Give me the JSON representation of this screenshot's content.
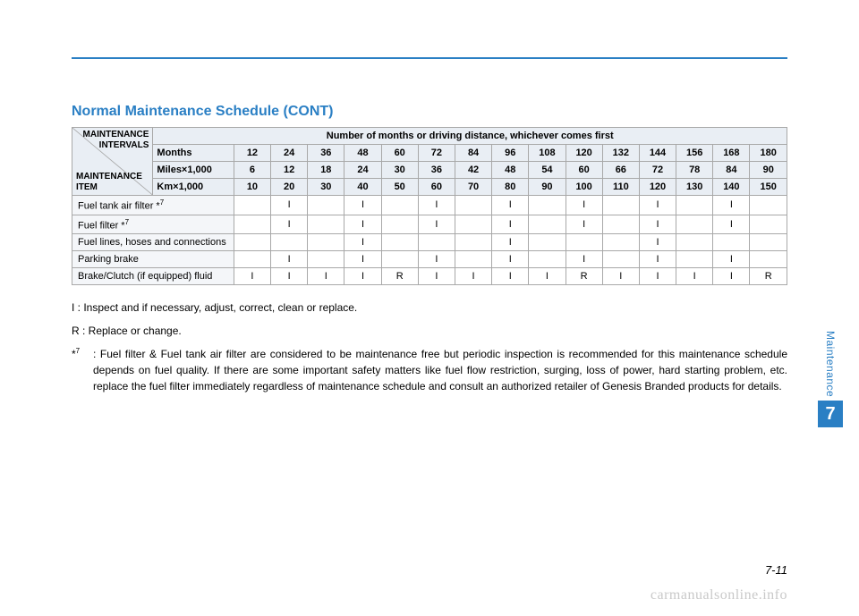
{
  "title": "Normal Maintenance Schedule (CONT)",
  "header": {
    "intervals_label_1": "MAINTENANCE",
    "intervals_label_2": "INTERVALS",
    "item_label_1": "MAINTENANCE",
    "item_label_2": "ITEM",
    "span_title": "Number of months or driving distance, whichever comes first",
    "rows": [
      {
        "label": "Months",
        "vals": [
          "12",
          "24",
          "36",
          "48",
          "60",
          "72",
          "84",
          "96",
          "108",
          "120",
          "132",
          "144",
          "156",
          "168",
          "180"
        ]
      },
      {
        "label": "Miles×1,000",
        "vals": [
          "6",
          "12",
          "18",
          "24",
          "30",
          "36",
          "42",
          "48",
          "54",
          "60",
          "66",
          "72",
          "78",
          "84",
          "90"
        ]
      },
      {
        "label": "Km×1,000",
        "vals": [
          "10",
          "20",
          "30",
          "40",
          "50",
          "60",
          "70",
          "80",
          "90",
          "100",
          "110",
          "120",
          "130",
          "140",
          "150"
        ]
      }
    ]
  },
  "items": [
    {
      "label": "Fuel tank air filter *",
      "sup": "7",
      "cells": [
        "",
        "I",
        "",
        "I",
        "",
        "I",
        "",
        "I",
        "",
        "I",
        "",
        "I",
        "",
        "I",
        ""
      ]
    },
    {
      "label": "Fuel filter *",
      "sup": "7",
      "cells": [
        "",
        "I",
        "",
        "I",
        "",
        "I",
        "",
        "I",
        "",
        "I",
        "",
        "I",
        "",
        "I",
        ""
      ]
    },
    {
      "label": "Fuel lines, hoses and connections",
      "sup": "",
      "cells": [
        "",
        "",
        "",
        "I",
        "",
        "",
        "",
        "I",
        "",
        "",
        "",
        "I",
        "",
        "",
        ""
      ]
    },
    {
      "label": "Parking brake",
      "sup": "",
      "cells": [
        "",
        "I",
        "",
        "I",
        "",
        "I",
        "",
        "I",
        "",
        "I",
        "",
        "I",
        "",
        "I",
        ""
      ]
    },
    {
      "label": "Brake/Clutch (if equipped) fluid",
      "sup": "",
      "cells": [
        "I",
        "I",
        "I",
        "I",
        "R",
        "I",
        "I",
        "I",
        "I",
        "R",
        "I",
        "I",
        "I",
        "I",
        "R"
      ]
    }
  ],
  "legend": {
    "i": "I  : Inspect and if necessary, adjust, correct, clean or replace.",
    "r": "R : Replace or change.",
    "footnote_label": "*",
    "footnote_sup": "7",
    "footnote_sep": " : ",
    "footnote_text": "Fuel filter & Fuel tank air filter are considered to be maintenance free but periodic inspection is recommended for this maintenance schedule depends on fuel quality. If there are some important safety matters like fuel flow restriction, surging, loss of power, hard starting problem, etc. replace the fuel filter immediately regardless of maintenance schedule and consult an authorized retailer of Genesis Branded products for details."
  },
  "side": {
    "label": "Maintenance",
    "num": "7"
  },
  "page_num": "7-11",
  "watermark": "carmanualsonline.info",
  "colors": {
    "accent": "#2a7fc4",
    "header_bg": "#e9eef4",
    "item_bg": "#f4f6f9",
    "border": "#a8a8a8",
    "watermark": "#c9c9c9"
  }
}
